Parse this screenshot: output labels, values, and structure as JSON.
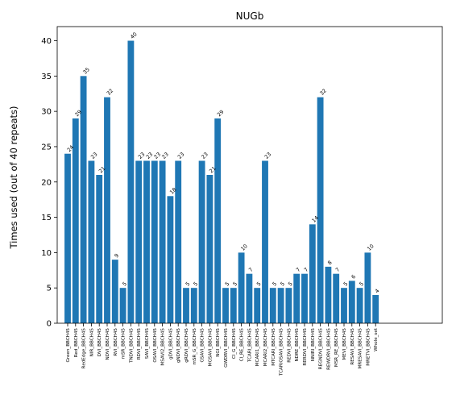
{
  "chart_data": {
    "type": "bar",
    "title": "NUGb",
    "xlabel": "",
    "ylabel": "Times used (out of 40 repeats)",
    "ylim": [
      0,
      42
    ],
    "yticks": [
      0,
      5,
      10,
      15,
      20,
      25,
      30,
      35,
      40
    ],
    "grid": false,
    "bar_color": "#1f77b4",
    "categories": [
      "Green_BBCH45",
      "Red_BBCH45",
      "RedEdge_BBCH45",
      "NIR_BBCH45",
      "DVI_BBCH45",
      "NDVI_BBCH45",
      "RVI_BBCH45",
      "mSR_BBCH45",
      "TNDVI_BBCH45",
      "RDVI_BBCH45",
      "SAVI_BBCH45",
      "OSAVI_BBCH45",
      "MSAVI2_BBCH45",
      "gDVI_BBCH45",
      "gNDVI_BBCH45",
      "gRDVI_BBCH45",
      "mSR_G_BBCH45",
      "GSAVI_BBCH45",
      "MGSAVI_BBCH45",
      "NGI_BBCH45",
      "GWDRVI_BBCH45",
      "CI_G_BBCH45",
      "CI_RE_BBCH45",
      "TCARI_BBCH45",
      "MCARI1_BBCH45",
      "MCARI2_BBCH45",
      "MTCARI_BBCH45",
      "TCARIOSAVI_BBCH45",
      "REDVI_BBCH45",
      "NDRE_BBCH45",
      "RERDVI_BBCH45",
      "NNIRI_BBCH45",
      "REGNDVI_BBCH45",
      "REWDRVI_BBCH45",
      "MSR_RE_BBCH45",
      "MEVI_BBCH45",
      "RESAVI_BBCH45",
      "MRESAVI_BBCH45",
      "MRETVI_BBCH45",
      "Whole_set"
    ],
    "values": [
      24,
      29,
      35,
      23,
      21,
      32,
      9,
      5,
      40,
      23,
      23,
      23,
      23,
      18,
      23,
      5,
      5,
      23,
      21,
      29,
      5,
      5,
      10,
      7,
      5,
      23,
      5,
      5,
      5,
      7,
      7,
      14,
      32,
      8,
      7,
      5,
      6,
      5,
      10,
      4
    ]
  }
}
